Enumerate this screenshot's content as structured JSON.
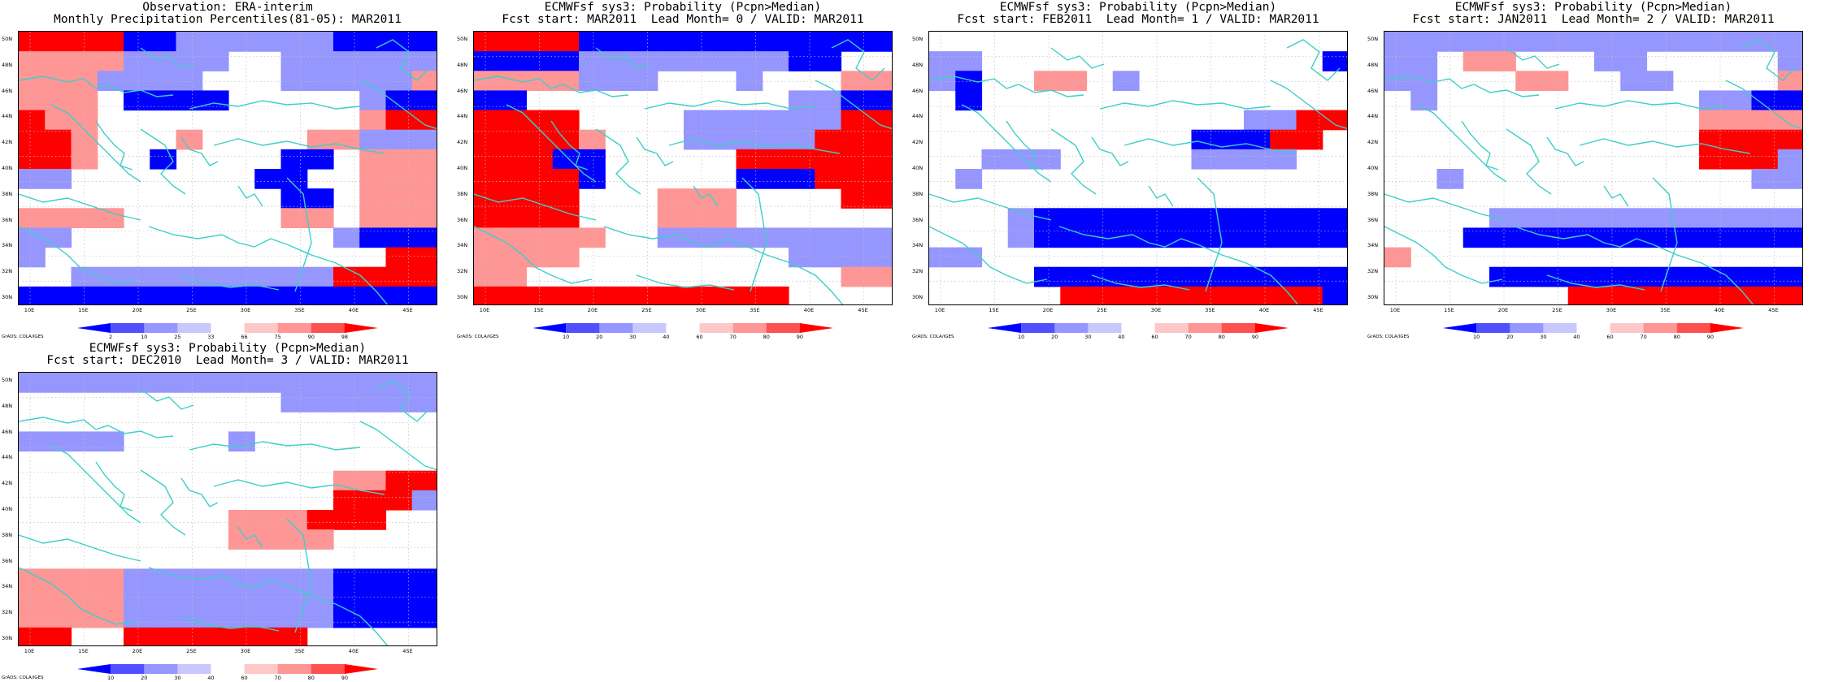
{
  "credit": "GrADS: COLA/IGES",
  "y_ticks": [
    "50N",
    "48N",
    "46N",
    "44N",
    "42N",
    "40N",
    "38N",
    "36N",
    "34N",
    "32N",
    "30N"
  ],
  "x_ticks": [
    "10E",
    "15E",
    "20E",
    "25E",
    "30E",
    "35E",
    "40E",
    "45E"
  ],
  "colors": {
    "pos": [
      "#ffc8c8",
      "#ff9696",
      "#ff5050",
      "#ff0000"
    ],
    "neg": [
      "#c8c8ff",
      "#9696ff",
      "#5050ff",
      "#0000ff"
    ],
    "coast": "#3ccfc8",
    "grid": "#c0c0c0"
  },
  "panels": [
    {
      "title1": "Observation: ERA-interim",
      "title2": "Monthly Precipitation Percentiles(81-05): MAR2011",
      "colorbar_labels": [
        "2",
        "10",
        "25",
        "33",
        "66",
        "75",
        "90",
        "98"
      ],
      "grid": [
        "4444331111113333",
        "2222111100111111",
        "2221111000111112",
        "2220333300000133",
        "4220000000000244",
        "4420002000022111",
        "4420030000330222",
        "1100000003300222",
        "0000000000330222",
        "2222000000220222",
        "1100000000001333",
        "1000000000000044",
        "0011111111114444",
        "3333333333333333"
      ]
    },
    {
      "title1": "ECMWFsf sys3: Probability (Pcpn>Median)",
      "title2": "Fcst start: MAR2011  Lead Month= 0 / VALID: MAR2011",
      "colorbar_labels": [
        "10",
        "20",
        "30",
        "40",
        "60",
        "70",
        "80",
        "90"
      ],
      "grid": [
        "4444333333333333",
        "3333111111113300",
        "2222111000100022",
        "3300000000001133",
        "4444000011111144",
        "4444200011111444",
        "4443300000444444",
        "4444300000333444",
        "4444000222000044",
        "4444000222000000",
        "2222200111111111",
        "2222000000001111",
        "2200000000000022",
        "4444444444440000"
      ]
    },
    {
      "title1": "ECMWFsf sys3: Probability (Pcpn>Median)",
      "title2": "Fcst start: FEB2011  Lead Month= 1 / VALID: MAR2011",
      "colorbar_labels": [
        "10",
        "20",
        "30",
        "40",
        "60",
        "70",
        "80",
        "90"
      ],
      "grid": [
        "0000000000000000",
        "1100000000000003",
        "1300220100000000",
        "0300000000000000",
        "0000000000001144",
        "0000000000333440",
        "0011100000111100",
        "0100000000000000",
        "0000000000000000",
        "0001333333333333",
        "0001333333333333",
        "1100000000000000",
        "0000333333333333",
        "0000044444444443"
      ]
    },
    {
      "title1": "ECMWFsf sys3: Probability (Pcpn>Median)",
      "title2": "Fcst start: JAN2011  Lead Month= 2 / VALID: MAR2011",
      "colorbar_labels": [
        "10",
        "20",
        "30",
        "40",
        "60",
        "70",
        "80",
        "90"
      ],
      "grid": [
        "1111111111111111",
        "1102200011000001",
        "1100022001100002",
        "0100000000001133",
        "0000000000002222",
        "0000000000004444",
        "0000000000004441",
        "0010000000000011",
        "0000000000000000",
        "0000111111111111",
        "0003333333333333",
        "2000000000000000",
        "0000333333333333",
        "0000000444444444"
      ]
    },
    {
      "title1": "ECMWFsf sys3: Probability (Pcpn>Median)",
      "title2": "Fcst start: DEC2010  Lead Month= 3 / VALID: MAR2011",
      "colorbar_labels": [
        "10",
        "20",
        "30",
        "40",
        "60",
        "70",
        "80",
        "90"
      ],
      "grid": [
        "1111111111111111",
        "0000000000111111",
        "0000000000000000",
        "1111000010000000",
        "0000000000000000",
        "0000000000002244",
        "0000000000004441",
        "0000000022244400",
        "0000000022220000",
        "0000000000000000",
        "2222111111113333",
        "2222111111113333",
        "2222111111113333",
        "4400444444400000"
      ]
    }
  ]
}
